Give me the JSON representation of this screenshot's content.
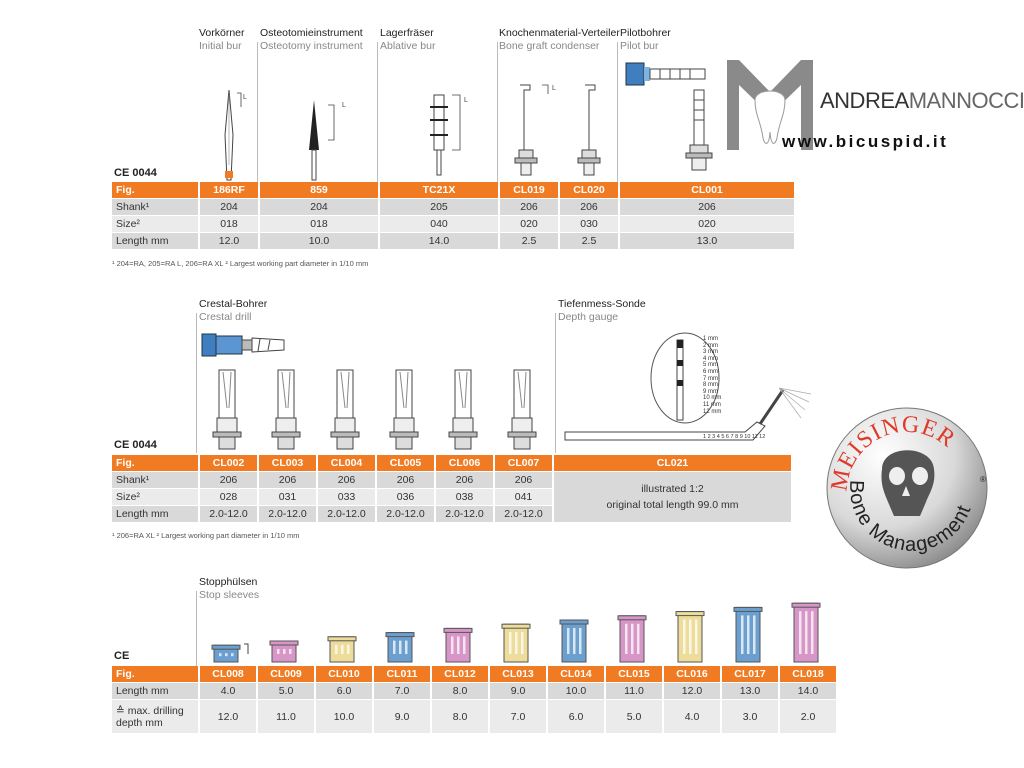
{
  "section1": {
    "ce_label": "CE 0044",
    "headers": [
      {
        "de": "Vorkörner",
        "en": "Initial bur"
      },
      {
        "de": "Osteotomieinstrument",
        "en": "Osteotomy instrument"
      },
      {
        "de": "Lagerfräser",
        "en": "Ablative bur"
      },
      {
        "de": "Knochenmaterial-Verteiler",
        "en": "Bone graft condenser"
      },
      {
        "de": "Pilotbohrer",
        "en": "Pilot bur"
      }
    ],
    "row_labels": {
      "fig": "Fig.",
      "shank": "Shank¹",
      "size": "Size²",
      "length": "Length mm"
    },
    "columns": [
      {
        "fig": "186RF",
        "shank": "204",
        "size": "018",
        "length": "12.0"
      },
      {
        "fig": "859",
        "shank": "204",
        "size": "018",
        "length": "10.0"
      },
      {
        "fig": "TC21X",
        "shank": "205",
        "size": "040",
        "length": "14.0"
      },
      {
        "fig": "CL019",
        "shank": "206",
        "size": "020",
        "length": "2.5"
      },
      {
        "fig": "CL020",
        "shank": "206",
        "size": "030",
        "length": "2.5"
      },
      {
        "fig": "CL001",
        "shank": "206",
        "size": "020",
        "length": "13.0"
      }
    ],
    "footnote": "¹ 204=RA, 205=RA L, 206=RA XL  ² Largest working part diameter in 1/10 mm"
  },
  "section2": {
    "ce_label": "CE 0044",
    "headers": [
      {
        "de": "Crestal-Bohrer",
        "en": "Crestal drill"
      },
      {
        "de": "Tiefenmess-Sonde",
        "en": "Depth gauge"
      }
    ],
    "row_labels": {
      "fig": "Fig.",
      "shank": "Shank¹",
      "size": "Size²",
      "length": "Length mm"
    },
    "columns": [
      {
        "fig": "CL002",
        "shank": "206",
        "size": "028",
        "length": "2.0-12.0"
      },
      {
        "fig": "CL003",
        "shank": "206",
        "size": "031",
        "length": "2.0-12.0"
      },
      {
        "fig": "CL004",
        "shank": "206",
        "size": "033",
        "length": "2.0-12.0"
      },
      {
        "fig": "CL005",
        "shank": "206",
        "size": "036",
        "length": "2.0-12.0"
      },
      {
        "fig": "CL006",
        "shank": "206",
        "size": "038",
        "length": "2.0-12.0"
      },
      {
        "fig": "CL007",
        "shank": "206",
        "size": "041",
        "length": "2.0-12.0"
      }
    ],
    "gauge": {
      "fig": "CL021",
      "note1": "illustrated 1:2",
      "note2": "original total length 99.0 mm"
    },
    "gauge_marks": [
      "1 mm",
      "2 mm",
      "3 mm",
      "4 mm",
      "5 mm",
      "6 mm",
      "7 mm",
      "8 mm",
      "9 mm",
      "10 mm",
      "11 mm",
      "12 mm"
    ],
    "gauge_scale": "1 2 3 4 5 6 7 8 9 10 11 12",
    "footnote": "¹ 206=RA XL  ² Largest working part diameter in 1/10 mm"
  },
  "section3": {
    "ce_label": "CE",
    "header": {
      "de": "Stopphülsen",
      "en": "Stop sleeves"
    },
    "row_labels": {
      "fig": "Fig.",
      "length": "Length mm",
      "depth": "≙ max. drilling depth mm"
    },
    "columns": [
      {
        "fig": "CL008",
        "length": "4.0",
        "depth": "12.0",
        "color": "#6a9fd0"
      },
      {
        "fig": "CL009",
        "length": "5.0",
        "depth": "11.0",
        "color": "#d896c8"
      },
      {
        "fig": "CL010",
        "length": "6.0",
        "depth": "10.0",
        "color": "#eedd9a"
      },
      {
        "fig": "CL011",
        "length": "7.0",
        "depth": "9.0",
        "color": "#6a9fd0"
      },
      {
        "fig": "CL012",
        "length": "8.0",
        "depth": "8.0",
        "color": "#d896c8"
      },
      {
        "fig": "CL013",
        "length": "9.0",
        "depth": "7.0",
        "color": "#eedd9a"
      },
      {
        "fig": "CL014",
        "length": "10.0",
        "depth": "6.0",
        "color": "#6a9fd0"
      },
      {
        "fig": "CL015",
        "length": "11.0",
        "depth": "5.0",
        "color": "#d896c8"
      },
      {
        "fig": "CL016",
        "length": "12.0",
        "depth": "4.0",
        "color": "#eedd9a"
      },
      {
        "fig": "CL017",
        "length": "13.0",
        "depth": "3.0",
        "color": "#6a9fd0"
      },
      {
        "fig": "CL018",
        "length": "14.0",
        "depth": "2.0",
        "color": "#d896c8"
      }
    ]
  },
  "branding": {
    "name_part1": "ANDREA",
    "name_part2": "MANNOCCI",
    "website": "www.bicuspid.it",
    "meisinger": "MEISINGER",
    "bone_mgmt": "Bone Management",
    "registered": "®"
  },
  "colors": {
    "accent": "#f07b22",
    "row_dark": "#d9d9d9",
    "row_light": "#ebebeb"
  }
}
